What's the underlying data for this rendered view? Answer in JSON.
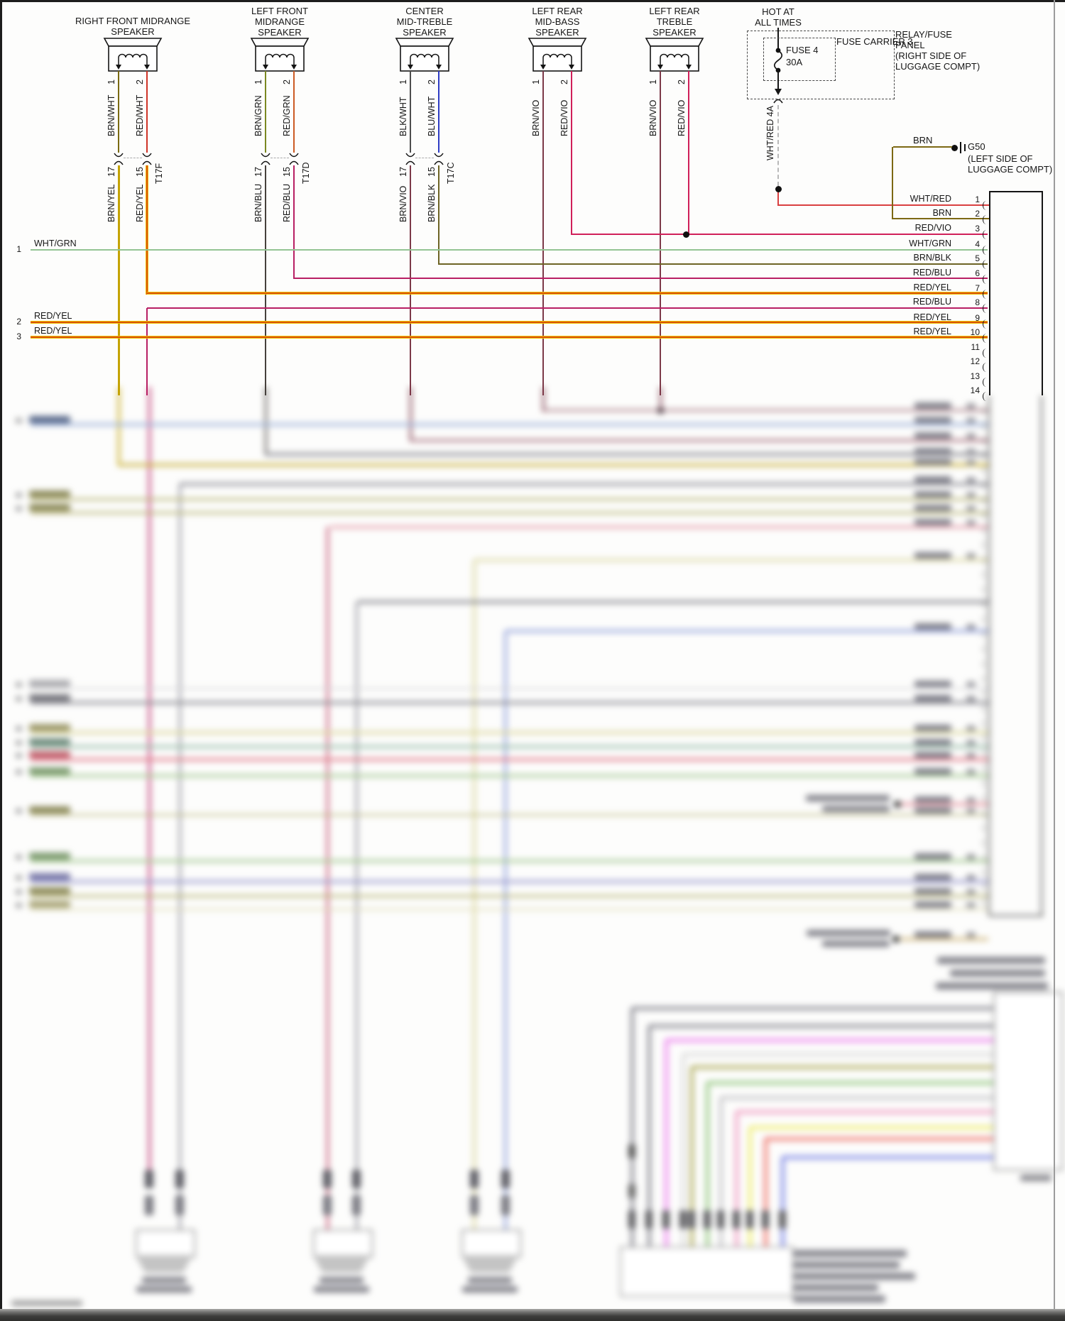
{
  "colors": {
    "BRN/WHT": "#7a6a12",
    "RED/WHT": "#cf3327",
    "BRN/GRN": "#7b8822",
    "RED/GRN": "#cc5b24",
    "BLK/WHT": "#4d4d4d",
    "BLU/WHT": "#2f3cc4",
    "BRN/VIO": "#7c3948",
    "RED/VIO": "#d0205a",
    "BRN/YEL": "#c4a305",
    "BRN/BLU": "#46413c",
    "RED/BLU": "#b81f63",
    "BRN/BLK": "#6d6425",
    "WHT/GRN": "#93c493",
    "WHT/RED": "#d94040",
    "BRN": "#7d6914",
    "RED/YEL_core": "#d23000",
    "RED/YEL_edge": "#f0c400",
    "dashed_wire": "#b8b8b8"
  },
  "speakers": [
    {
      "name": [
        "RIGHT FRONT MIDRANGE",
        "SPEAKER"
      ],
      "pin1": "1",
      "pin2": "2",
      "wire1": "BRN/WHT",
      "wire2": "RED/WHT",
      "conn": "T17F",
      "cpin1": "17",
      "cpin2": "15",
      "lwire1": "BRN/YEL",
      "lwire2": "RED/YEL"
    },
    {
      "name": [
        "LEFT FRONT",
        "MIDRANGE",
        "SPEAKER"
      ],
      "pin1": "1",
      "pin2": "2",
      "wire1": "BRN/GRN",
      "wire2": "RED/GRN",
      "conn": "T17D",
      "cpin1": "17",
      "cpin2": "15",
      "lwire1": "BRN/BLU",
      "lwire2": "RED/BLU"
    },
    {
      "name": [
        "CENTER",
        "MID-TREBLE",
        "SPEAKER"
      ],
      "pin1": "1",
      "pin2": "2",
      "wire1": "BLK/WHT",
      "wire2": "BLU/WHT",
      "conn": "T17C",
      "cpin1": "17",
      "cpin2": "15",
      "lwire1": "BRN/VIO",
      "lwire2": "BRN/BLK"
    },
    {
      "name": [
        "LEFT REAR",
        "MID-BASS",
        "SPEAKER"
      ],
      "pin1": "1",
      "pin2": "2",
      "wire1": "BRN/VIO",
      "wire2": "RED/VIO"
    },
    {
      "name": [
        "LEFT REAR",
        "TREBLE",
        "SPEAKER"
      ],
      "pin1": "1",
      "pin2": "2",
      "wire1": "BRN/VIO",
      "wire2": "RED/VIO"
    }
  ],
  "power": {
    "hot": [
      "HOT AT",
      "ALL TIMES"
    ],
    "fuse": [
      "FUSE 4",
      "30A"
    ],
    "carrier": "FUSE CARRIER 3",
    "panel": [
      "RELAY/FUSE",
      "PANEL",
      "(RIGHT SIDE OF",
      "LUGGAGE COMPT)"
    ],
    "feed_label": "WHT/RED  4A"
  },
  "ground": {
    "wire": "BRN",
    "id": "G50",
    "loc": [
      "(LEFT SIDE OF",
      "LUGGAGE COMPT)"
    ]
  },
  "left_feeds": [
    {
      "n": "1",
      "label": "WHT/GRN"
    },
    {
      "n": "2",
      "label": "RED/YEL"
    },
    {
      "n": "3",
      "label": "RED/YEL"
    }
  ],
  "connector": {
    "pins": [
      {
        "n": "1",
        "label": "WHT/RED"
      },
      {
        "n": "2",
        "label": "BRN"
      },
      {
        "n": "3",
        "label": "RED/VIO"
      },
      {
        "n": "4",
        "label": "WHT/GRN"
      },
      {
        "n": "5",
        "label": "BRN/BLK"
      },
      {
        "n": "6",
        "label": "RED/BLU"
      },
      {
        "n": "7",
        "label": "RED/YEL"
      },
      {
        "n": "8",
        "label": "RED/BLU"
      },
      {
        "n": "9",
        "label": "RED/YEL"
      },
      {
        "n": "10",
        "label": "RED/YEL"
      },
      {
        "n": "11",
        "label": ""
      },
      {
        "n": "12",
        "label": ""
      },
      {
        "n": "13",
        "label": ""
      },
      {
        "n": "14",
        "label": ""
      }
    ]
  }
}
